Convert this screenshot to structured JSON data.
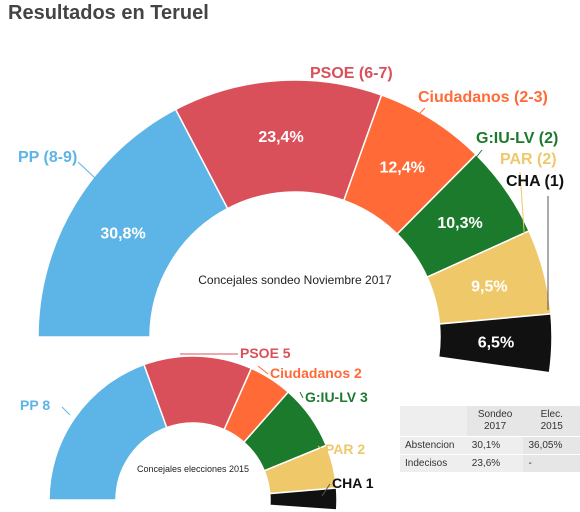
{
  "title": "Resultados en Teruel",
  "chart_data": [
    {
      "type": "semi-donut",
      "center_label": "Concejales sondeo Noviembre 2017",
      "slices": [
        {
          "party_label": "PP (8-9)",
          "value": 30.8,
          "value_label": "30,8%",
          "color": "#5DB4E6",
          "label_color": "#5DB4E6",
          "value_text_color": "#ffffff"
        },
        {
          "party_label": "PSOE (6-7)",
          "value": 23.4,
          "value_label": "23,4%",
          "color": "#D9505A",
          "label_color": "#D9505A",
          "value_text_color": "#ffffff"
        },
        {
          "party_label": "Ciudadanos (2-3)",
          "value": 12.4,
          "value_label": "12,4%",
          "color": "#FF6A36",
          "label_color": "#FF6A36",
          "value_text_color": "#ffffff"
        },
        {
          "party_label": "G:IU-LV (2)",
          "value": 10.3,
          "value_label": "10,3%",
          "color": "#1C7A2C",
          "label_color": "#1C7A2C",
          "value_text_color": "#ffffff"
        },
        {
          "party_label": "PAR (2)",
          "value": 9.5,
          "value_label": "9,5%",
          "color": "#EFC86A",
          "label_color": "#EFC86A",
          "value_text_color": "#222222"
        },
        {
          "party_label": "CHA (1)",
          "value": 6.5,
          "value_label": "6,5%",
          "color": "#111111",
          "label_color": "#111111",
          "value_text_color": "#ffffff"
        }
      ]
    },
    {
      "type": "semi-donut",
      "center_label": "Concejales elecciones 2015",
      "slices": [
        {
          "party_label": "PP 8",
          "value": 8,
          "color": "#5DB4E6",
          "label_color": "#5DB4E6"
        },
        {
          "party_label": "PSOE 5",
          "value": 5,
          "color": "#D9505A",
          "label_color": "#D9505A"
        },
        {
          "party_label": "Ciudadanos 2",
          "value": 2,
          "color": "#FF6A36",
          "label_color": "#FF6A36"
        },
        {
          "party_label": "G:IU-LV 3",
          "value": 3,
          "color": "#1C7A2C",
          "label_color": "#1C7A2C"
        },
        {
          "party_label": "PAR 2",
          "value": 2,
          "color": "#EFC86A",
          "label_color": "#EFC86A"
        },
        {
          "party_label": "CHA 1",
          "value": 1,
          "color": "#111111",
          "label_color": "#111111"
        }
      ]
    }
  ],
  "table": {
    "headers": [
      "",
      "Sondeo 2017",
      "Elec. 2015"
    ],
    "rows": [
      [
        "Abstencion",
        "30,1%",
        "36,05%"
      ],
      [
        "Indecisos",
        "23,6%",
        "-"
      ]
    ]
  }
}
